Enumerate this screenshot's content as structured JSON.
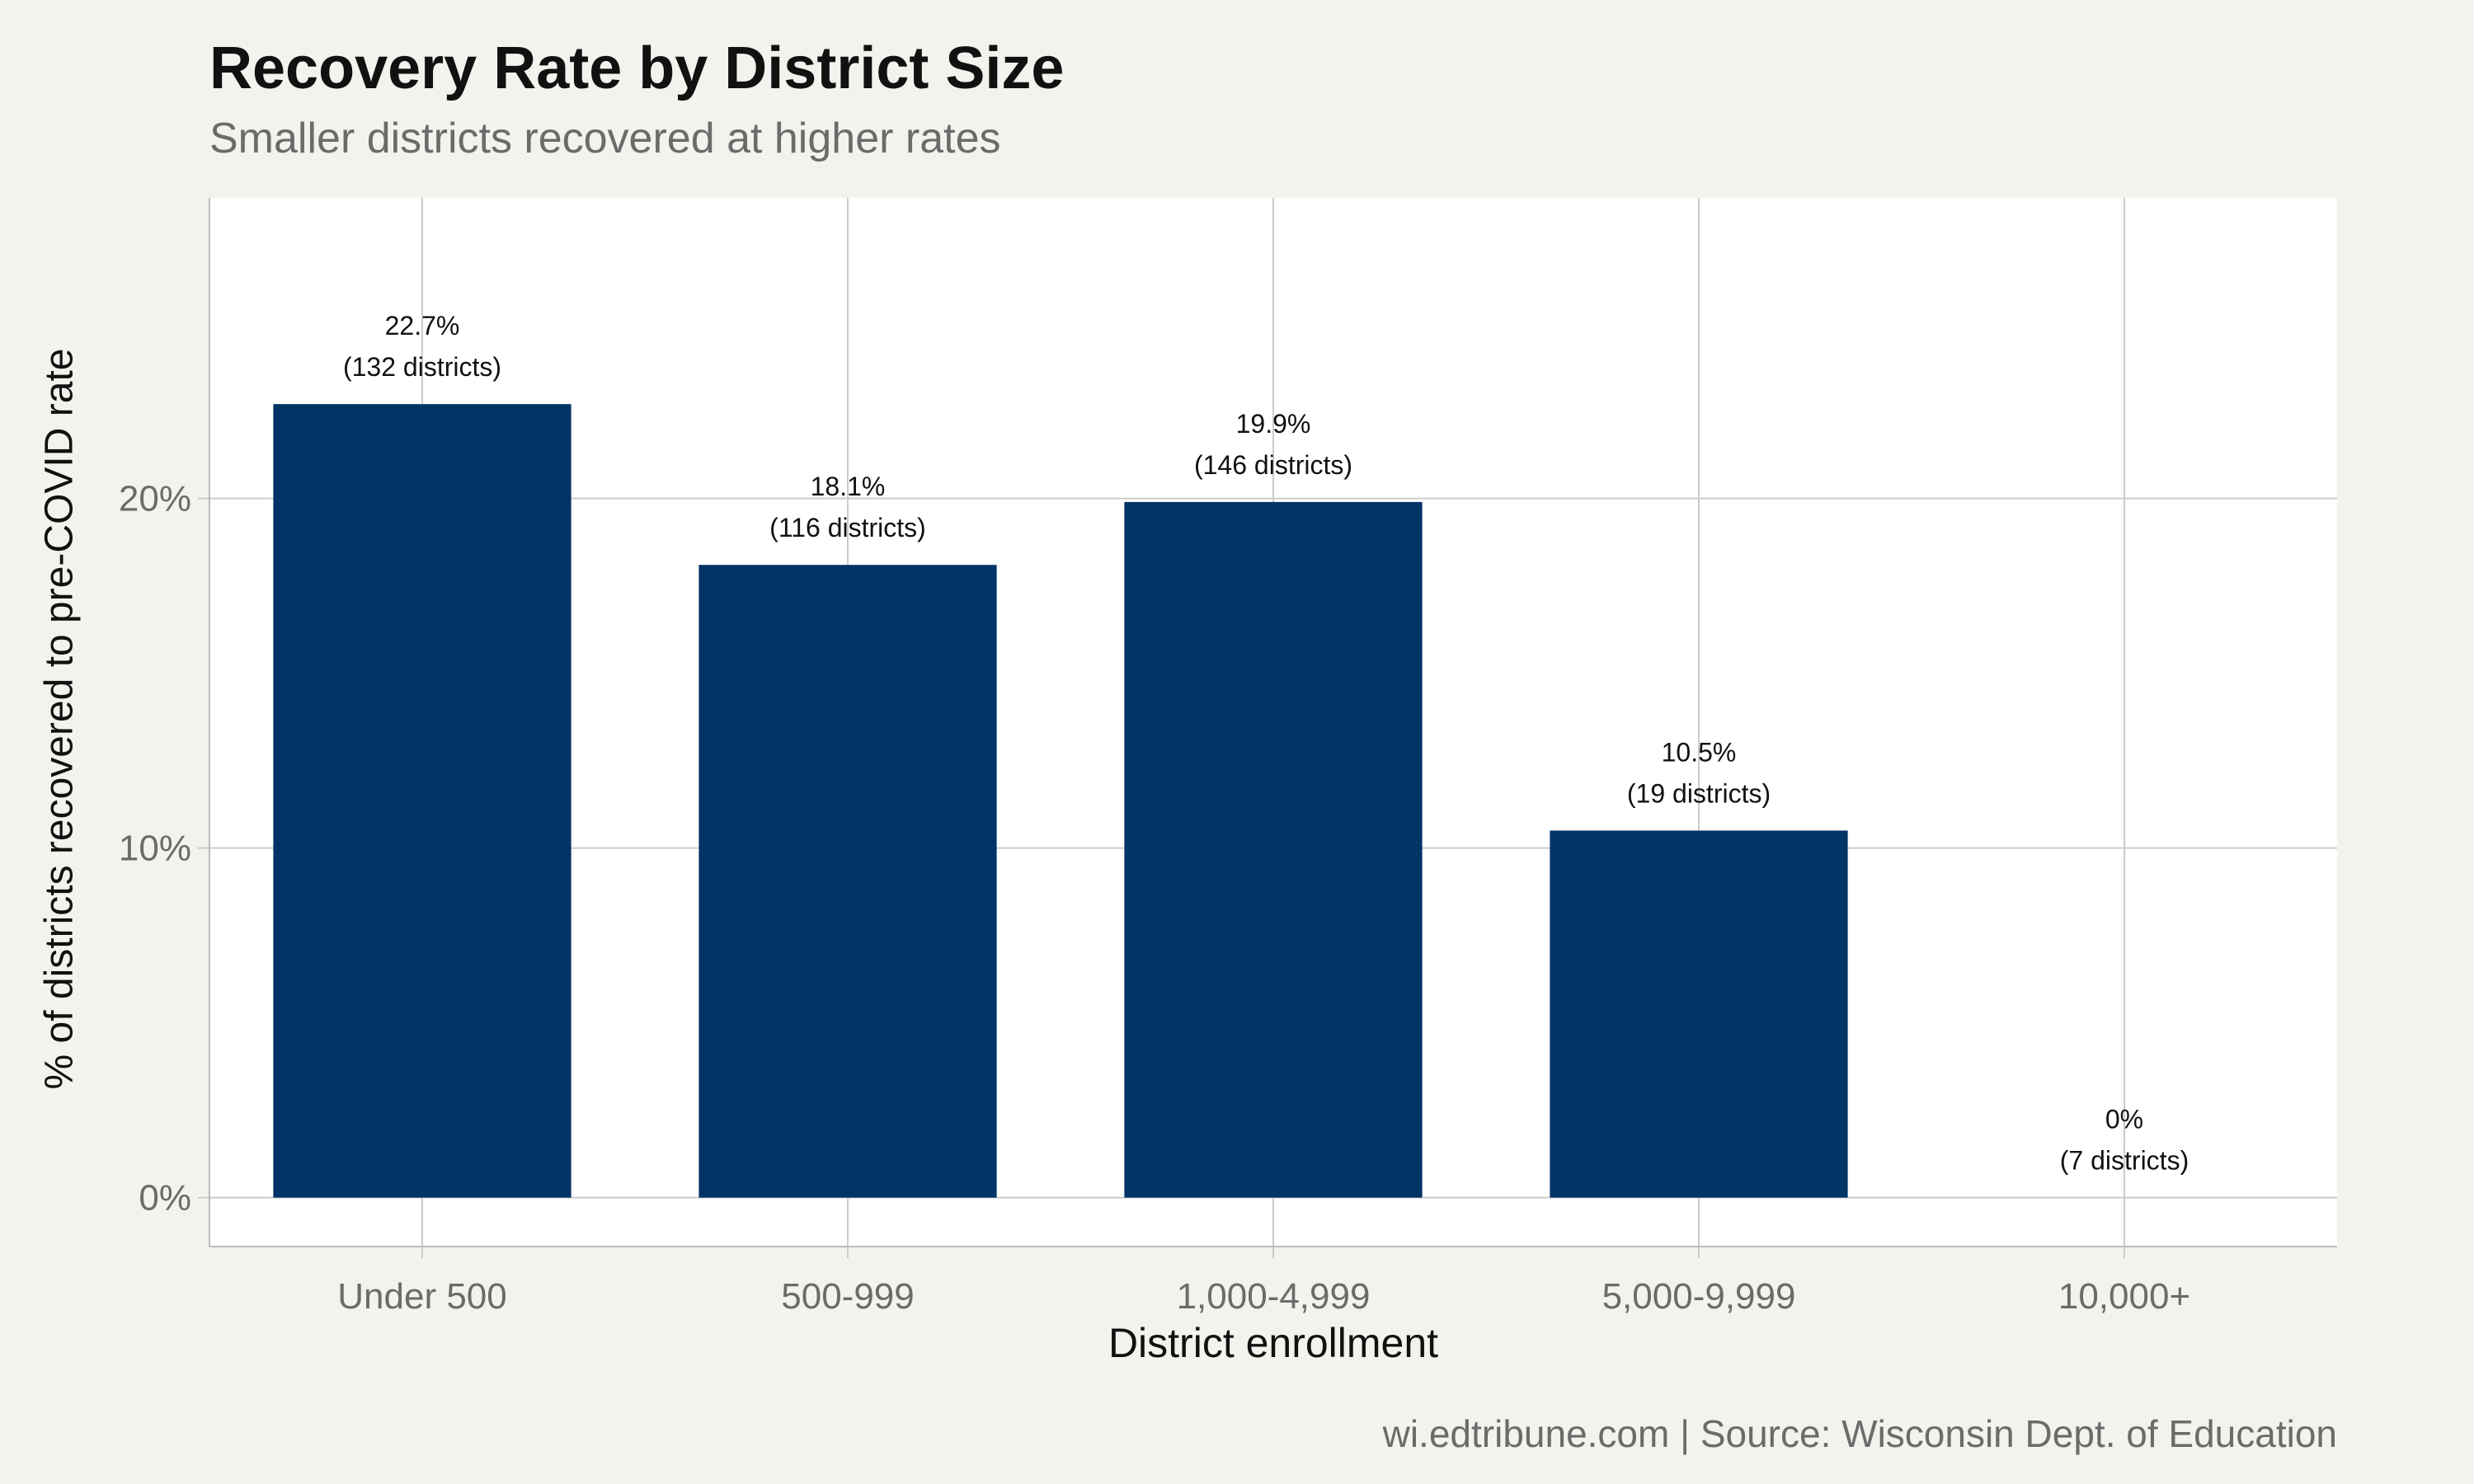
{
  "chart_data": {
    "type": "bar",
    "title": "Recovery Rate by District Size",
    "subtitle": "Smaller districts recovered at higher rates",
    "xlabel": "District enrollment",
    "ylabel": "% of districts recovered to pre-COVID rate",
    "caption": "wi.edtribune.com | Source: Wisconsin Dept. of Education",
    "categories": [
      "Under 500",
      "500-999",
      "1,000-4,999",
      "5,000-9,999",
      "10,000+"
    ],
    "values": [
      22.7,
      18.1,
      19.9,
      10.5,
      0
    ],
    "value_labels": [
      "22.7%",
      "18.1%",
      "19.9%",
      "10.5%",
      "0%"
    ],
    "district_labels": [
      "(132 districts)",
      "(116 districts)",
      "(146 districts)",
      "(19 districts)",
      "(7 districts)"
    ],
    "ylim": [
      -1.4,
      28.6
    ],
    "yticks": [
      0,
      10,
      20
    ],
    "ytick_labels": [
      "0%",
      "10%",
      "20%"
    ],
    "grid": true,
    "colors": {
      "bar": "#003366",
      "panel": "#ffffff",
      "background": "#f4f2ed",
      "grid": "#cccccc"
    }
  }
}
